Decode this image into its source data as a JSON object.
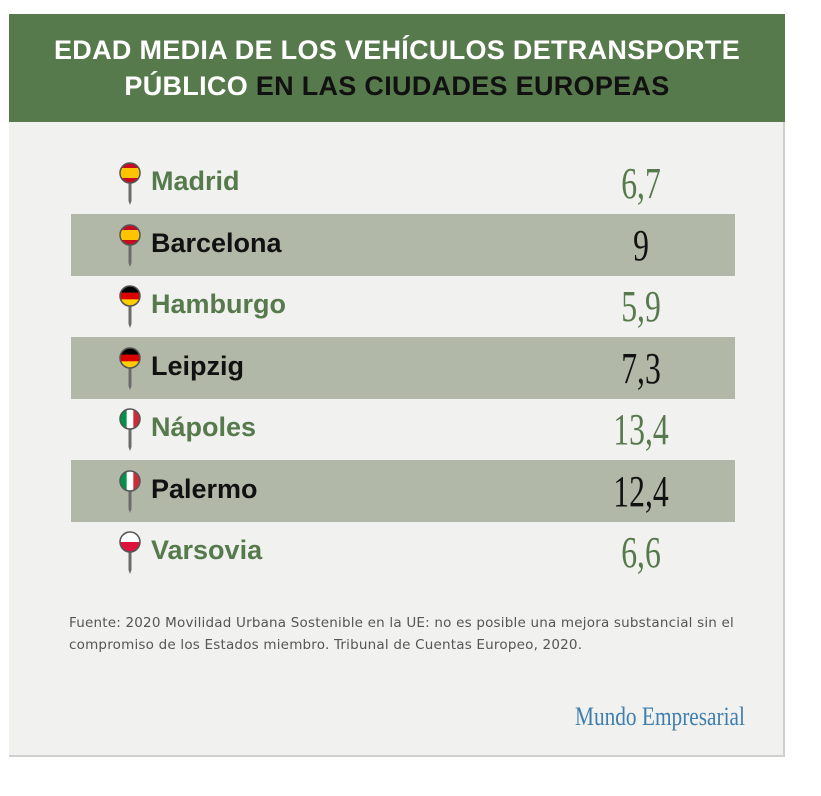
{
  "header": {
    "line1": "EDAD MEDIA DE LOS VEHÍCULOS DETRANSPORTE",
    "line2_a": "PÚBLICO ",
    "line2_b": "EN LAS CIUDADES EUROPEAS"
  },
  "chart_data": {
    "type": "table",
    "title": "EDAD MEDIA DE LOS VEHÍCULOS DETRANSPORTE PÚBLICO EN LAS CIUDADES EUROPEAS",
    "rows": [
      {
        "city": "Madrid",
        "value": "6,7",
        "flag": "spain"
      },
      {
        "city": "Barcelona",
        "value": "9",
        "flag": "spain"
      },
      {
        "city": "Hamburgo",
        "value": "5,9",
        "flag": "germany"
      },
      {
        "city": "Leipzig",
        "value": "7,3",
        "flag": "germany"
      },
      {
        "city": "Nápoles",
        "value": "13,4",
        "flag": "italy"
      },
      {
        "city": "Palermo",
        "value": "12,4",
        "flag": "italy"
      },
      {
        "city": "Varsovia",
        "value": "6,6",
        "flag": "poland"
      }
    ]
  },
  "colors": {
    "accent_green": "#577a4c",
    "row_shade": "#b2b8a7",
    "brand_blue": "#3f7fae"
  },
  "footer": {
    "source": "Fuente: 2020 Movilidad Urbana Sostenible en la UE: no es posible una mejora substancial sin el compromiso de los Estados miembro. Tribunal de Cuentas Europeo, 2020.",
    "brand": "Mundo Empresarial"
  }
}
